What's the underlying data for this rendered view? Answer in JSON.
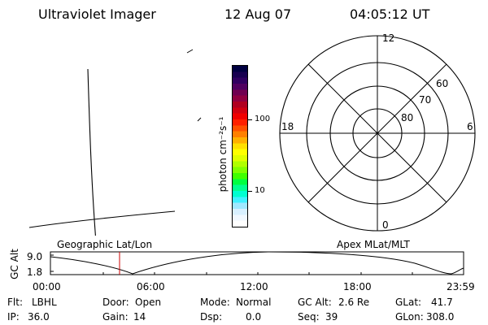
{
  "header": {
    "title": "Ultraviolet Imager",
    "date": "12 Aug 07",
    "time": "04:05:12 UT"
  },
  "colorbar": {
    "unit_label": "photon cm⁻²s⁻¹",
    "ticks": [
      "100",
      "10"
    ],
    "colors": [
      "#000040",
      "#180050",
      "#300060",
      "#500060",
      "#700050",
      "#900040",
      "#b00020",
      "#d00010",
      "#f00000",
      "#ff2000",
      "#ff5000",
      "#ff8000",
      "#ffb000",
      "#ffe000",
      "#ffff00",
      "#e0ff00",
      "#b0ff00",
      "#80ff00",
      "#40ff00",
      "#00ff40",
      "#00ff90",
      "#00ffd0",
      "#40f0ff",
      "#a0e8ff",
      "#d8f0ff",
      "#f0f8ff",
      "#ffffff"
    ]
  },
  "polar_plot": {
    "mlt_labels": {
      "top": "12",
      "bottom": "0",
      "left": "18",
      "right": "6"
    },
    "mlat_labels": [
      "60",
      "70",
      "80"
    ]
  },
  "orbit_plot": {
    "left_title": "Geographic Lat/Lon",
    "right_title": "Apex MLat/MLT",
    "y_axis_label": "GC Alt",
    "y_ticks": [
      "9.0",
      "1.8"
    ],
    "x_ticks": [
      "00:00",
      "06:00",
      "12:00",
      "18:00",
      "23:59"
    ]
  },
  "info": {
    "row1": [
      {
        "label": "Flt:",
        "value": "LBHL"
      },
      {
        "label": "Door:",
        "value": "Open"
      },
      {
        "label": "Mode:",
        "value": "Normal"
      },
      {
        "label": "GC Alt:",
        "value": "2.6 Re"
      },
      {
        "label": "GLat:",
        "value": "41.7"
      }
    ],
    "row2": [
      {
        "label": "IP:",
        "value": "36.0"
      },
      {
        "label": "Gain:",
        "value": "14"
      },
      {
        "label": "Dsp:",
        "value": "0.0"
      },
      {
        "label": "Seq:",
        "value": "39"
      },
      {
        "label": "GLon:",
        "value": "308.0"
      }
    ]
  }
}
